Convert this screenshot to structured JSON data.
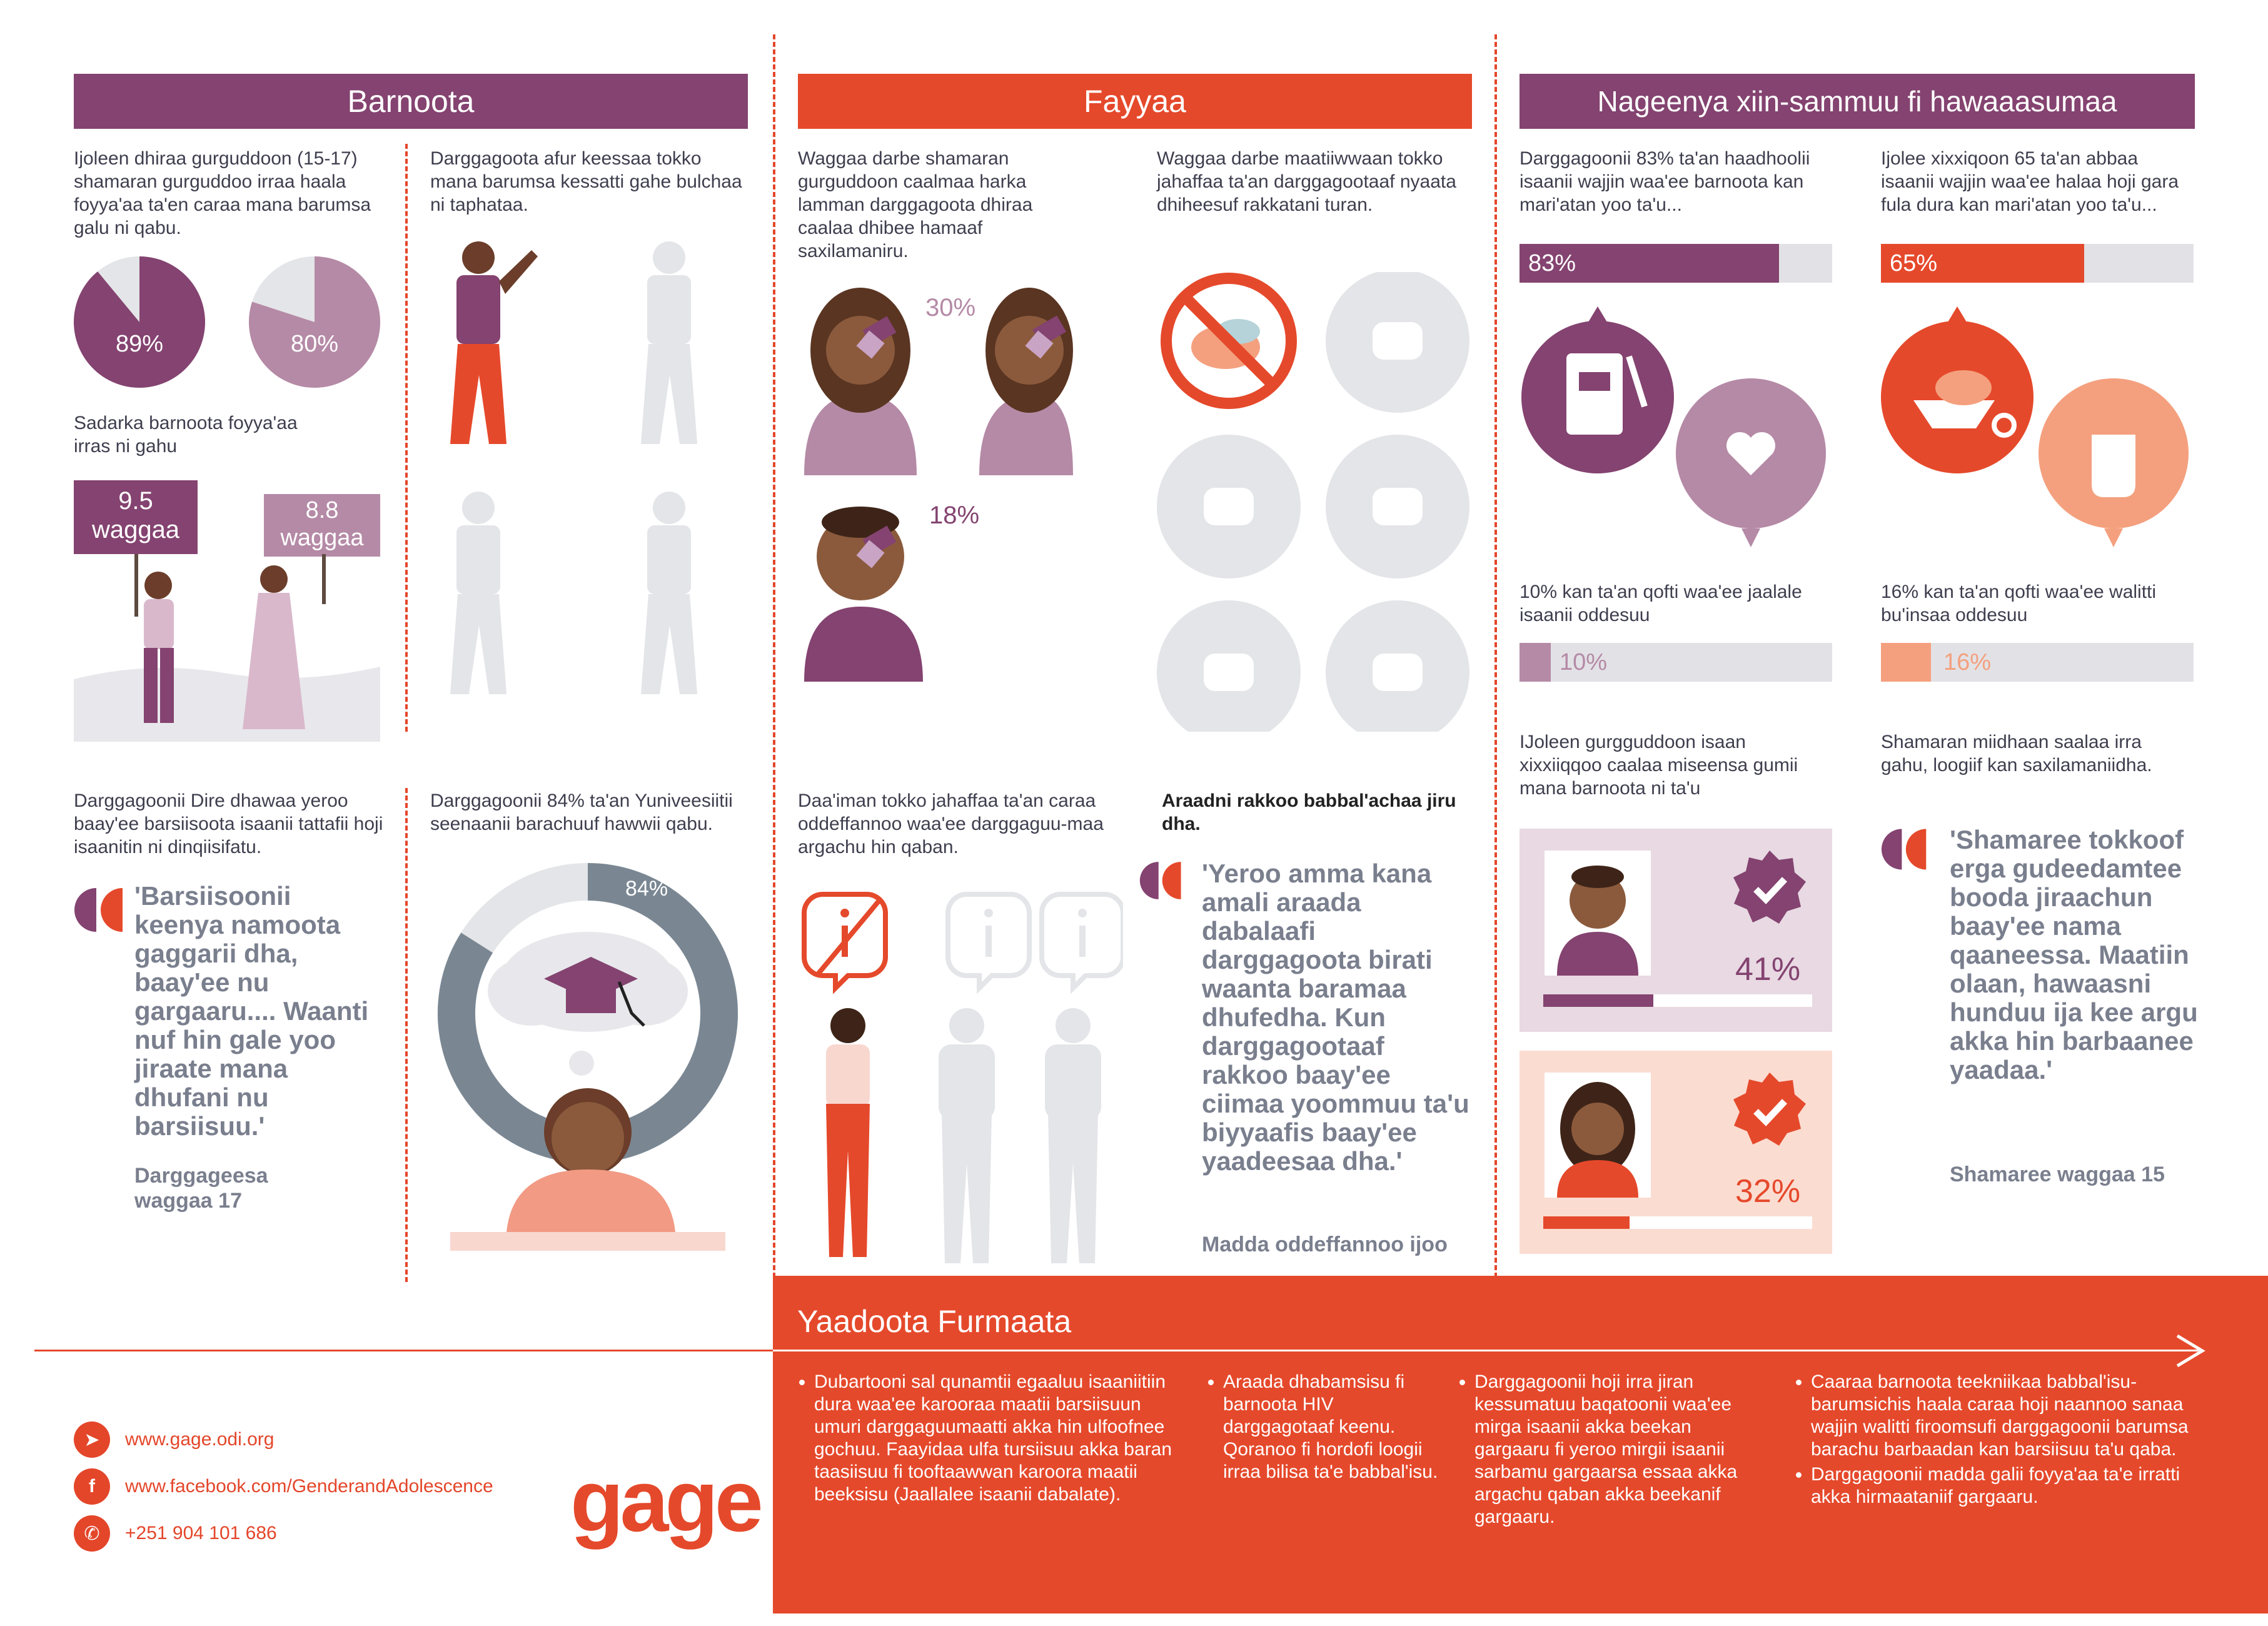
{
  "colors": {
    "purple": "#844370",
    "orange": "#e5492b",
    "grey": "#e4e5e8",
    "light_purple": "#b58aa6",
    "peach": "#f4a07e"
  },
  "barnoota": {
    "title": "Barnoota",
    "intro_text": "Ijoleen dhiraa gurguddoon (15-17) shamaran gurguddoo irraa haala foyya'aa ta'en caraa mana barumsa galu ni qabu.",
    "pie1_value": 89,
    "pie1_label": "89%",
    "pie2_value": 80,
    "pie2_label": "80%",
    "sadarka_text": "Sadarka barnoota foyya'aa irras ni gahu",
    "sign1_num": "9.5",
    "sign1_unit": "waggaa",
    "sign2_num": "8.8",
    "sign2_unit": "waggaa",
    "dropout_text": "Darggagoota afur keessaa tokko mana barumsa kessatti gahe bulchaa ni taphataa.",
    "dire_text": "Darggagoonii Dire dhawaa yeroo baay'ee barsiisoota isaanii tattafii hoji isaanitin ni dinqiisifatu.",
    "quote": "'Barsiisoonii keenya namoota gaggarii dha, baay'ee nu gargaaru.... Waanti nuf hin gale yoo jiraate mana dhufani nu barsiisuu.'",
    "quote_attr": "Darggageesa waggaa 17",
    "univ_text": "Darggagoonii 84% ta'an Yuniveesiitii seenaanii barachuuf hawwii qabu.",
    "univ_value": 84,
    "univ_label": "84%"
  },
  "fayyaa": {
    "title": "Fayyaa",
    "intro_text": "Waggaa darbe shamaran gurguddoon caalmaa harka lamman darggagoota dhiraa caalaa dhibee hamaaf saxilamaniru.",
    "pct_a": "30%",
    "pct_b": "18%",
    "food_text": "Waggaa darbe maatiiwwaan tokko jahaffaa ta'an darggagootaaf nyaata dhiheesuf rakkatani turan.",
    "info_text": "Daa'iman tokko jahaffaa ta'an caraa oddeffannoo waa'ee darggaguu-maa argachu hin qaban.",
    "rakkoo_head": "Araadni rakkoo babbal'achaa jiru dha.",
    "quote": "'Yeroo amma kana amali araada dabalaafi darggagoota birati waanta baramaa dhufedha. Kun darggagootaaf rakkoo baay'ee ciimaa yoommuu ta'u biyyaafis baay'ee yaadeesaa dha.'",
    "quote_attr": "Madda oddeffannoo ijoo"
  },
  "nageenya": {
    "title": "Nageenya xiin-sammuu fi hawaaasumaa",
    "left_text": "Darggagoonii 83% ta'an haadhoolii isaanii wajjin waa'ee barnoota kan mari'atan yoo ta'u...",
    "bar_83": 83,
    "bar_83_label": "83%",
    "right_text": "Ijolee xixxiqoon 65 ta'an abbaa isaanii wajjin waa'ee halaa hoji gara fula dura kan mari'atan yoo ta'u...",
    "bar_65": 65,
    "bar_65_label": "65%",
    "left_text2": "10% kan ta'an qofti waa'ee jaalale isaanii oddesuu",
    "bar_10": 10,
    "bar_10_label": "10%",
    "right_text2": "16% kan ta'an qofti waa'ee walitti bu'insaa oddesuu",
    "bar_16": 16,
    "bar_16_label": "16%",
    "gurg_text": "IJoleen gurgguddoon isaan xixxiiqqoo caalaa miseensa gumii mana barnoota ni ta'u",
    "card1_value": 41,
    "card1_label": "41%",
    "card2_value": 32,
    "card2_label": "32%",
    "miid_text": "Shamaran miidhaan saalaa irra gahu, loogiif kan saxilamaniidha.",
    "quote": "'Shamaree tokkoof erga gudeedamtee booda jiraachun baay'ee nama qaaneessa. Maatiin olaan, hawaasni hunduu ija kee argu akka hin barbaanee yaadaa.'",
    "quote_attr": "Shamaree waggaa 15"
  },
  "yaadoota": {
    "title": "Yaadoota Furmaata",
    "col1": [
      "Dubartooni sal qunamtii egaaluu isaaniitiin dura waa'ee karooraa maatii barsiisuun umuri darggaguumaatti akka hin ulfoofnee gochuu. Faayidaa ulfa tursiisuu akka baran taasiisuu fi tooftaawwan karoora maatii beeksisu (Jaallalee isaanii dabalate)."
    ],
    "col2": [
      "Araada dhabamsisu fi barnoota HIV darggagotaaf keenu. Qoranoo fi hordofi loogii irraa bilisa ta'e babbal'isu."
    ],
    "col3": [
      "Darggagoonii hoji irra jiran kessumatuu baqatoonii waa'ee mirga isaanii akka beekan gargaaru fi yeroo mirgii isaanii sarbamu gargaarsa essaa akka argachu qaban akka beekanif gargaaru."
    ],
    "col4": [
      "Caaraa barnoota teekniikaa babbal'isu-barumsichis haala caraa hoji naannoo sanaa wajjin walitti firoomsufi darggagoonii barumsa barachu barbaadan kan barsiisuu ta'u qaba.",
      "Darggagoonii madda galii foyya'aa ta'e irratti akka hirmaataniif gargaaru."
    ]
  },
  "footer": {
    "web": "www.gage.odi.org",
    "facebook": "www.facebook.com/GenderandAdolescence",
    "phone": "+251 904 101 686",
    "logo": "gage"
  }
}
